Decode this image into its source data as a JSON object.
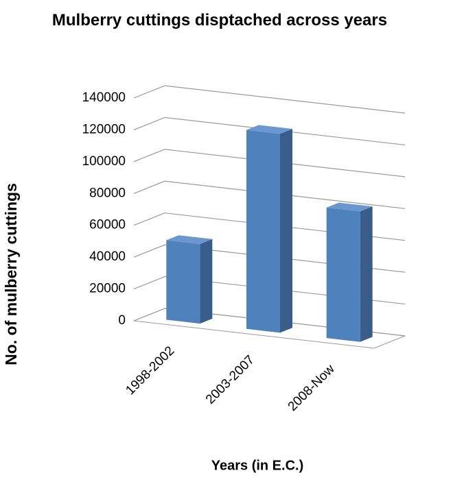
{
  "chart_data": {
    "type": "bar3d",
    "title": "Mulberry cuttings disptached across years",
    "x_label": "Years (in E.C.)",
    "y_label": "No. of mulberry cuttings",
    "categories": [
      "1998-2002",
      "2003-2007",
      "2008-Now"
    ],
    "values": [
      50000,
      125000,
      82000
    ],
    "color": "#4f81bd",
    "ylim": [
      0,
      140000
    ],
    "yticks": [
      0,
      20000,
      40000,
      60000,
      80000,
      100000,
      120000,
      140000
    ],
    "grid": true
  }
}
